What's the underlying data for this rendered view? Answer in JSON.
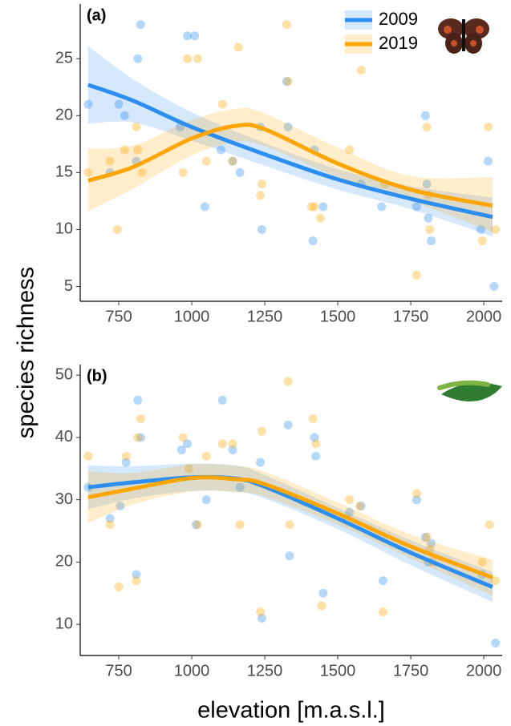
{
  "chart_data": [
    {
      "type": "scatter",
      "panel": "(a)",
      "ylabel": "species richness",
      "legend": "top-right",
      "xlim": [
        618,
        2063
      ],
      "ylim": [
        3.7,
        29.8
      ],
      "xticks": [
        750,
        1000,
        1250,
        1500,
        1750,
        2000
      ],
      "yticks": [
        5,
        10,
        15,
        20,
        25
      ],
      "series": [
        {
          "name": "2009",
          "color": "#2b8ef0",
          "x": [
            645,
            720,
            750,
            770,
            810,
            815,
            825,
            985,
            1010,
            960,
            1045,
            1100,
            1140,
            1165,
            1240,
            1235,
            1330,
            1325,
            1415,
            1420,
            1450,
            1580,
            1650,
            1770,
            1800,
            1810,
            1820,
            1805,
            1990,
            2015,
            2035
          ],
          "values": [
            21,
            15,
            21,
            20,
            16,
            25,
            28,
            27,
            27,
            19,
            12,
            17,
            16,
            15,
            10,
            19,
            19,
            23,
            9,
            17,
            12,
            14,
            12,
            12,
            20,
            11,
            9,
            14,
            10,
            16,
            5
          ],
          "fit_x": [
            645,
            800,
            1000,
            1250,
            1500,
            1750,
            2030
          ],
          "fit": [
            22.7,
            21.3,
            19.0,
            16.6,
            14.4,
            12.7,
            11.1
          ],
          "fit_lower": [
            19.3,
            19.4,
            17.8,
            15.6,
            13.5,
            11.8,
            9.4
          ],
          "fit_upper": [
            26.1,
            23.2,
            20.3,
            17.6,
            15.3,
            13.8,
            12.8
          ]
        },
        {
          "name": "2019",
          "color": "#ffa500",
          "x": [
            645,
            720,
            745,
            770,
            810,
            815,
            830,
            970,
            985,
            1020,
            1050,
            1105,
            1140,
            1160,
            1235,
            1240,
            1325,
            1330,
            1410,
            1440,
            1420,
            1540,
            1580,
            1660,
            1770,
            1805,
            1810,
            1815,
            1995,
            2015,
            2040
          ],
          "values": [
            15,
            16,
            10,
            17,
            19,
            17,
            15,
            15,
            25,
            25,
            16,
            21,
            16,
            26,
            13,
            14,
            28,
            23,
            12,
            11,
            12,
            17,
            24,
            14,
            6,
            19,
            13,
            10,
            9,
            19,
            10
          ],
          "fit_x": [
            645,
            800,
            1000,
            1150,
            1250,
            1500,
            1750,
            2030
          ],
          "fit": [
            14.3,
            15.5,
            18.0,
            19.1,
            18.8,
            15.8,
            13.5,
            12.1
          ],
          "fit_lower": [
            11.6,
            13.6,
            16.5,
            17.7,
            17.3,
            14.6,
            12.5,
            9.8
          ],
          "fit_upper": [
            17.1,
            17.4,
            19.6,
            20.6,
            20.2,
            17.2,
            14.7,
            14.6
          ]
        }
      ]
    },
    {
      "type": "scatter",
      "panel": "(b)",
      "xlabel": "elevation [m.a.s.l.]",
      "xlim": [
        618,
        2063
      ],
      "ylim": [
        5,
        51.7
      ],
      "xticks": [
        750,
        1000,
        1250,
        1500,
        1750,
        2000
      ],
      "yticks": [
        10,
        20,
        30,
        40,
        50
      ],
      "series": [
        {
          "name": "2009",
          "color": "#2b8ef0",
          "x": [
            645,
            720,
            755,
            775,
            810,
            815,
            825,
            965,
            985,
            1015,
            1050,
            1105,
            1140,
            1165,
            1235,
            1240,
            1330,
            1335,
            1420,
            1425,
            1450,
            1540,
            1580,
            1655,
            1770,
            1800,
            1810,
            1820,
            1995,
            2040
          ],
          "values": [
            32,
            27,
            29,
            36,
            18,
            46,
            40,
            38,
            39,
            26,
            30,
            46,
            38,
            32,
            36,
            11,
            42,
            21,
            40,
            37,
            15,
            28,
            29,
            17,
            30,
            24,
            20,
            23,
            18,
            7
          ],
          "fit_x": [
            645,
            800,
            1000,
            1150,
            1250,
            1500,
            1750,
            2030
          ],
          "fit": [
            32,
            32.8,
            33.6,
            33.4,
            32.1,
            27,
            21.5,
            16
          ],
          "fit_lower": [
            28.5,
            30.2,
            31.4,
            31.3,
            30.2,
            25.3,
            19.5,
            13.6
          ],
          "fit_upper": [
            35.5,
            35.4,
            35.8,
            35.5,
            34.0,
            28.7,
            23.5,
            18.4
          ]
        },
        {
          "name": "2019",
          "color": "#ffa500",
          "x": [
            645,
            720,
            750,
            775,
            810,
            815,
            825,
            970,
            990,
            1020,
            1050,
            1105,
            1140,
            1165,
            1240,
            1235,
            1330,
            1335,
            1415,
            1425,
            1445,
            1540,
            1575,
            1655,
            1770,
            1805,
            1815,
            1825,
            1995,
            2020,
            2040
          ],
          "values": [
            37,
            26,
            16,
            37,
            17,
            40,
            43,
            40,
            35,
            26,
            37,
            39,
            39,
            26,
            41,
            12,
            49,
            26,
            43,
            39,
            13,
            30,
            29,
            12,
            31,
            24,
            22,
            20,
            20,
            26,
            17
          ],
          "fit_x": [
            645,
            800,
            1000,
            1150,
            1250,
            1500,
            1750,
            2030
          ],
          "fit": [
            30.4,
            31.8,
            33.5,
            33.3,
            32.5,
            27.8,
            22.5,
            17.5
          ],
          "fit_lower": [
            26.2,
            29.3,
            31.3,
            31.2,
            30.5,
            26.0,
            20.6,
            14.6
          ],
          "fit_upper": [
            34.6,
            34.3,
            35.7,
            35.4,
            34.5,
            29.6,
            24.4,
            20.4
          ]
        }
      ]
    }
  ]
}
